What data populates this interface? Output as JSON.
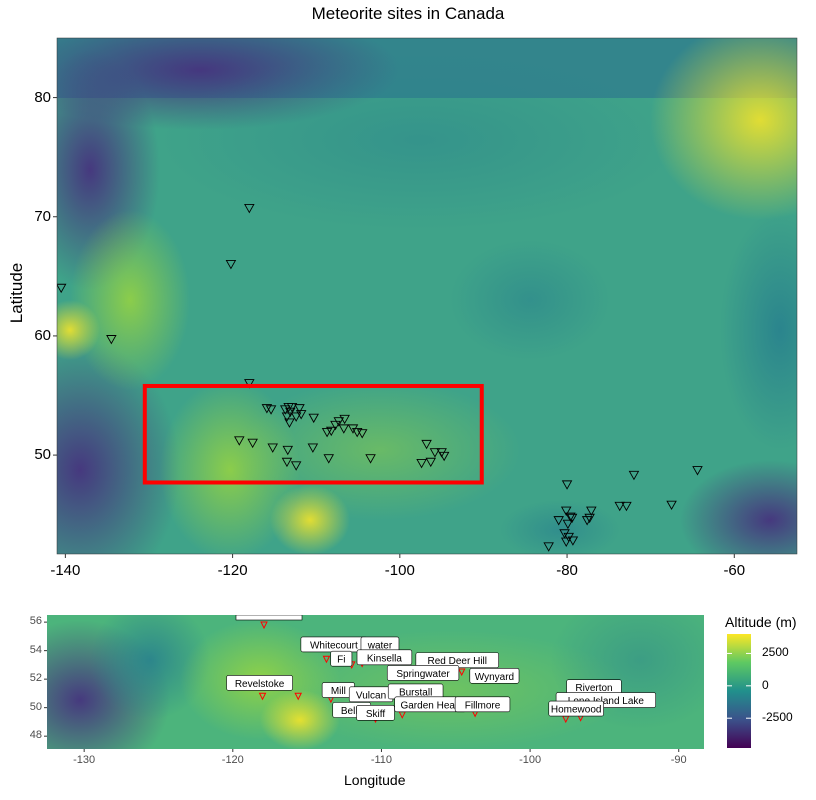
{
  "title": "Meteorite sites in Canada",
  "main_map": {
    "ylabel": "Latitude",
    "x_ticks": [
      "-140",
      "-120",
      "-100",
      "-80",
      "-60"
    ],
    "y_ticks": [
      "80",
      "70",
      "60",
      "50"
    ],
    "x_tick_values": [
      -140,
      -120,
      -100,
      -80,
      -60
    ],
    "y_tick_values": [
      80,
      70,
      60,
      50
    ],
    "xlim": [
      -141,
      -52.5
    ],
    "ylim": [
      41.7,
      85
    ],
    "highlight_box": {
      "lon": [
        -130.5,
        -90.2
      ],
      "lat": [
        47.7,
        55.8
      ],
      "color": "#ff0000"
    },
    "sites": [
      [
        -140.5,
        64.0
      ],
      [
        -118.0,
        70.7
      ],
      [
        -120.2,
        66.0
      ],
      [
        -134.5,
        59.7
      ],
      [
        -118.0,
        56.0
      ],
      [
        -119.2,
        51.2
      ],
      [
        -117.6,
        51.0
      ],
      [
        -115.9,
        53.9
      ],
      [
        -115.4,
        53.8
      ],
      [
        -113.7,
        53.8
      ],
      [
        -113.3,
        54.0
      ],
      [
        -113.1,
        53.6
      ],
      [
        -112.9,
        54.0
      ],
      [
        -113.5,
        53.2
      ],
      [
        -113.2,
        52.7
      ],
      [
        -112.4,
        53.2
      ],
      [
        -112.0,
        53.9
      ],
      [
        -111.8,
        53.4
      ],
      [
        -110.3,
        53.1
      ],
      [
        -108.7,
        51.9
      ],
      [
        -108.2,
        52.0
      ],
      [
        -107.7,
        52.5
      ],
      [
        -107.3,
        52.8
      ],
      [
        -106.7,
        52.2
      ],
      [
        -106.6,
        53.0
      ],
      [
        -105.6,
        52.2
      ],
      [
        -105.1,
        51.9
      ],
      [
        -104.5,
        51.8
      ],
      [
        -115.2,
        50.6
      ],
      [
        -113.4,
        50.4
      ],
      [
        -113.5,
        49.4
      ],
      [
        -112.4,
        49.1
      ],
      [
        -110.4,
        50.6
      ],
      [
        -108.5,
        49.7
      ],
      [
        -103.5,
        49.7
      ],
      [
        -96.8,
        50.9
      ],
      [
        -95.8,
        50.2
      ],
      [
        -95.0,
        50.2
      ],
      [
        -94.7,
        49.9
      ],
      [
        -97.4,
        49.3
      ],
      [
        -96.3,
        49.4
      ],
      [
        -80.0,
        47.5
      ],
      [
        -81.0,
        44.5
      ],
      [
        -80.1,
        45.3
      ],
      [
        -79.6,
        44.8
      ],
      [
        -79.9,
        44.2
      ],
      [
        -79.4,
        44.7
      ],
      [
        -80.3,
        43.4
      ],
      [
        -79.8,
        43.1
      ],
      [
        -79.3,
        42.8
      ],
      [
        -80.1,
        42.7
      ],
      [
        -82.2,
        42.3
      ],
      [
        -77.6,
        44.5
      ],
      [
        -77.3,
        44.7
      ],
      [
        -77.1,
        45.3
      ],
      [
        -73.7,
        45.7
      ],
      [
        -72.9,
        45.7
      ],
      [
        -72.0,
        48.3
      ],
      [
        -67.5,
        45.8
      ],
      [
        -64.4,
        48.7
      ]
    ]
  },
  "inset_map": {
    "xlabel": "Longitude",
    "x_ticks": [
      "-130",
      "-120",
      "-110",
      "-100",
      "-90"
    ],
    "y_ticks": [
      "56",
      "54",
      "52",
      "50",
      "48"
    ],
    "x_tick_values": [
      -130,
      -120,
      -110,
      -100,
      -90
    ],
    "y_tick_values": [
      56,
      54,
      52,
      50,
      48
    ],
    "xlim": [
      -132.5,
      -88.3
    ],
    "ylim": [
      47.1,
      56.5
    ],
    "labels": [
      {
        "text": "Whitecourt",
        "lon": -113.2,
        "lat": 54.4
      },
      {
        "text": "water",
        "lon": -110.1,
        "lat": 54.4
      },
      {
        "text": "Kinsella",
        "lon": -109.8,
        "lat": 53.5
      },
      {
        "text": "Fi",
        "lon": -112.7,
        "lat": 53.4
      },
      {
        "text": "Red Deer Hill",
        "lon": -104.9,
        "lat": 53.3
      },
      {
        "text": "Springwater",
        "lon": -107.2,
        "lat": 52.4
      },
      {
        "text": "Wynyard",
        "lon": -102.4,
        "lat": 52.2
      },
      {
        "text": "Revelstoke",
        "lon": -118.2,
        "lat": 51.7
      },
      {
        "text": "Mill",
        "lon": -112.9,
        "lat": 51.2
      },
      {
        "text": "Vulcan",
        "lon": -110.7,
        "lat": 50.9
      },
      {
        "text": "Burstall",
        "lon": -107.7,
        "lat": 51.1
      },
      {
        "text": "Garden Head",
        "lon": -106.7,
        "lat": 50.2
      },
      {
        "text": "Fillmore",
        "lon": -103.2,
        "lat": 50.2
      },
      {
        "text": "Belly",
        "lon": -112.0,
        "lat": 49.8
      },
      {
        "text": "Skiff",
        "lon": -110.4,
        "lat": 49.6
      },
      {
        "text": "Riverton",
        "lon": -95.7,
        "lat": 51.4
      },
      {
        "text": "Lone Island Lake",
        "lon": -94.9,
        "lat": 50.5
      },
      {
        "text": "Homewood",
        "lon": -96.9,
        "lat": 49.9
      }
    ],
    "markers": [
      [
        -117.9,
        55.8
      ],
      [
        -113.7,
        53.4
      ],
      [
        -112.0,
        53.0
      ],
      [
        -111.3,
        53.1
      ],
      [
        -109.0,
        53.4
      ],
      [
        -107.0,
        52.6
      ],
      [
        -104.6,
        52.5
      ],
      [
        -118.0,
        50.8
      ],
      [
        -115.6,
        50.8
      ],
      [
        -113.4,
        50.6
      ],
      [
        -111.6,
        49.4
      ],
      [
        -110.4,
        49.2
      ],
      [
        -108.6,
        49.5
      ],
      [
        -103.7,
        49.6
      ],
      [
        -97.6,
        49.2
      ],
      [
        -96.6,
        49.3
      ]
    ]
  },
  "legend": {
    "title": "Altitude (m)",
    "labels": [
      "2500",
      "0",
      "-2500"
    ],
    "values": [
      2500,
      0,
      -2500
    ],
    "range": [
      -4800,
      4000
    ]
  },
  "colors": {
    "box": "#ff0000",
    "marker": "#ff0000",
    "viridis_low": "#440154",
    "viridis_mid": "#21908c",
    "viridis_high": "#fde725"
  }
}
